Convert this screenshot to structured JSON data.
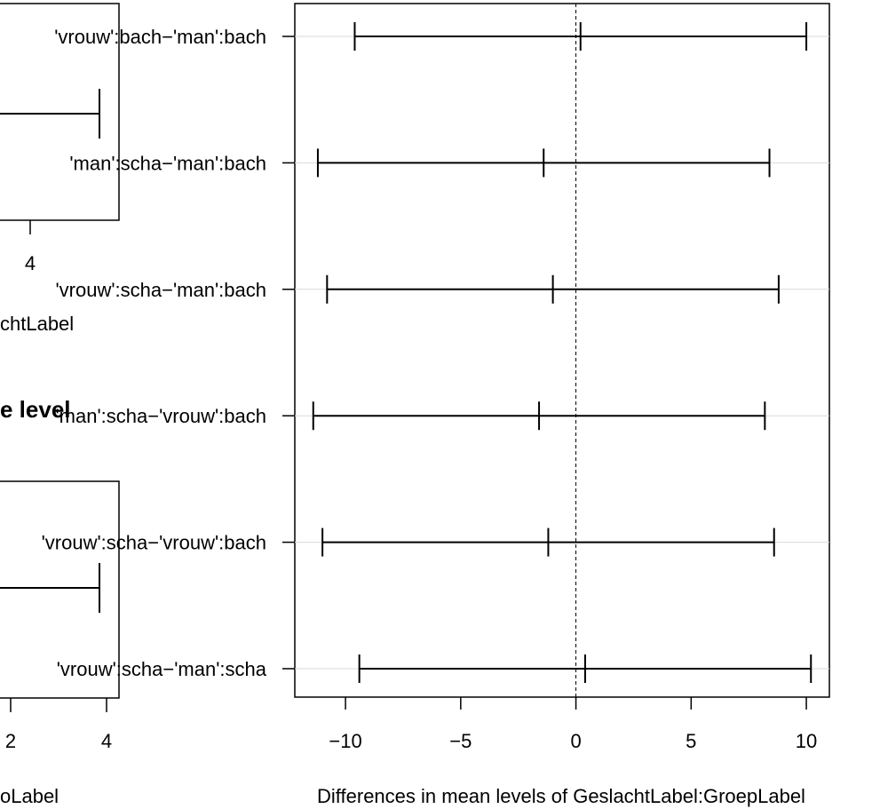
{
  "left_panel_top": {
    "tick_labels": [
      "4"
    ],
    "xlabel_fragment": "chtLabel",
    "title_fragment": "e level"
  },
  "left_panel_bottom": {
    "tick_labels": [
      "2",
      "4"
    ],
    "xlabel_fragment": "oLabel"
  },
  "chart_data": {
    "type": "interval",
    "title": "",
    "xlabel": "Differences in mean levels of GeslachtLabel:GroepLabel",
    "ylabel": "",
    "xlim": [
      -12.2,
      11
    ],
    "xticks": [
      -10,
      -5,
      0,
      5,
      10
    ],
    "xtick_labels": [
      "−10",
      "−5",
      "0",
      "5",
      "10"
    ],
    "reference_line": 0,
    "grid": "horizontal",
    "categories": [
      "'vrouw':bach−'man':bach",
      "'man':scha−'man':bach",
      "'vrouw':scha−'man':bach",
      "'man':scha−'vrouw':bach",
      "'vrouw':scha−'vrouw':bach",
      "'vrouw':scha−'man':scha"
    ],
    "series": [
      {
        "lwr": -9.6,
        "diff": 0.2,
        "upr": 10.0
      },
      {
        "lwr": -11.2,
        "diff": -1.4,
        "upr": 8.4
      },
      {
        "lwr": -10.8,
        "diff": -1.0,
        "upr": 8.8
      },
      {
        "lwr": -11.4,
        "diff": -1.6,
        "upr": 8.2
      },
      {
        "lwr": -11.0,
        "diff": -1.2,
        "upr": 8.6
      },
      {
        "lwr": -9.4,
        "diff": 0.4,
        "upr": 10.2
      }
    ]
  }
}
